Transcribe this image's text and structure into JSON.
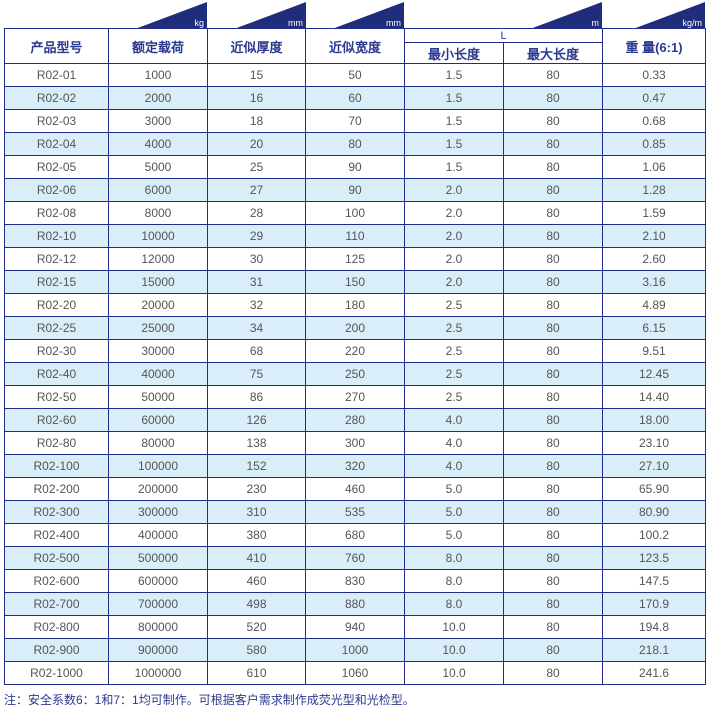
{
  "units": [
    "kg",
    "mm",
    "mm",
    "m",
    "kg/m"
  ],
  "headers": {
    "model": "产品型号",
    "load": "额定载荷",
    "thickness": "近似厚度",
    "width": "近似宽度",
    "L": "L",
    "min_len": "最小长度",
    "max_len": "最大长度",
    "weight": "重 量(6:1)"
  },
  "rows": [
    [
      "R02-01",
      "1000",
      "15",
      "50",
      "1.5",
      "80",
      "0.33"
    ],
    [
      "R02-02",
      "2000",
      "16",
      "60",
      "1.5",
      "80",
      "0.47"
    ],
    [
      "R02-03",
      "3000",
      "18",
      "70",
      "1.5",
      "80",
      "0.68"
    ],
    [
      "R02-04",
      "4000",
      "20",
      "80",
      "1.5",
      "80",
      "0.85"
    ],
    [
      "R02-05",
      "5000",
      "25",
      "90",
      "1.5",
      "80",
      "1.06"
    ],
    [
      "R02-06",
      "6000",
      "27",
      "90",
      "2.0",
      "80",
      "1.28"
    ],
    [
      "R02-08",
      "8000",
      "28",
      "100",
      "2.0",
      "80",
      "1.59"
    ],
    [
      "R02-10",
      "10000",
      "29",
      "110",
      "2.0",
      "80",
      "2.10"
    ],
    [
      "R02-12",
      "12000",
      "30",
      "125",
      "2.0",
      "80",
      "2.60"
    ],
    [
      "R02-15",
      "15000",
      "31",
      "150",
      "2.0",
      "80",
      "3.16"
    ],
    [
      "R02-20",
      "20000",
      "32",
      "180",
      "2.5",
      "80",
      "4.89"
    ],
    [
      "R02-25",
      "25000",
      "34",
      "200",
      "2.5",
      "80",
      "6.15"
    ],
    [
      "R02-30",
      "30000",
      "68",
      "220",
      "2.5",
      "80",
      "9.51"
    ],
    [
      "R02-40",
      "40000",
      "75",
      "250",
      "2.5",
      "80",
      "12.45"
    ],
    [
      "R02-50",
      "50000",
      "86",
      "270",
      "2.5",
      "80",
      "14.40"
    ],
    [
      "R02-60",
      "60000",
      "126",
      "280",
      "4.0",
      "80",
      "18.00"
    ],
    [
      "R02-80",
      "80000",
      "138",
      "300",
      "4.0",
      "80",
      "23.10"
    ],
    [
      "R02-100",
      "100000",
      "152",
      "320",
      "4.0",
      "80",
      "27.10"
    ],
    [
      "R02-200",
      "200000",
      "230",
      "460",
      "5.0",
      "80",
      "65.90"
    ],
    [
      "R02-300",
      "300000",
      "310",
      "535",
      "5.0",
      "80",
      "80.90"
    ],
    [
      "R02-400",
      "400000",
      "380",
      "680",
      "5.0",
      "80",
      "100.2"
    ],
    [
      "R02-500",
      "500000",
      "410",
      "760",
      "8.0",
      "80",
      "123.5"
    ],
    [
      "R02-600",
      "600000",
      "460",
      "830",
      "8.0",
      "80",
      "147.5"
    ],
    [
      "R02-700",
      "700000",
      "498",
      "880",
      "8.0",
      "80",
      "170.9"
    ],
    [
      "R02-800",
      "800000",
      "520",
      "940",
      "10.0",
      "80",
      "194.8"
    ],
    [
      "R02-900",
      "900000",
      "580",
      "1000",
      "10.0",
      "80",
      "218.1"
    ],
    [
      "R02-1000",
      "1000000",
      "610",
      "1060",
      "10.0",
      "80",
      "241.6"
    ]
  ],
  "note": "注：安全系数6：1和7：1均可制作。可根据客户需求制作成荧光型和光检型。",
  "colors": {
    "border": "#1f2d8c",
    "header_text": "#2b3a8f",
    "alt_row": "#daeefa",
    "triangle": "#1f2d7a"
  }
}
